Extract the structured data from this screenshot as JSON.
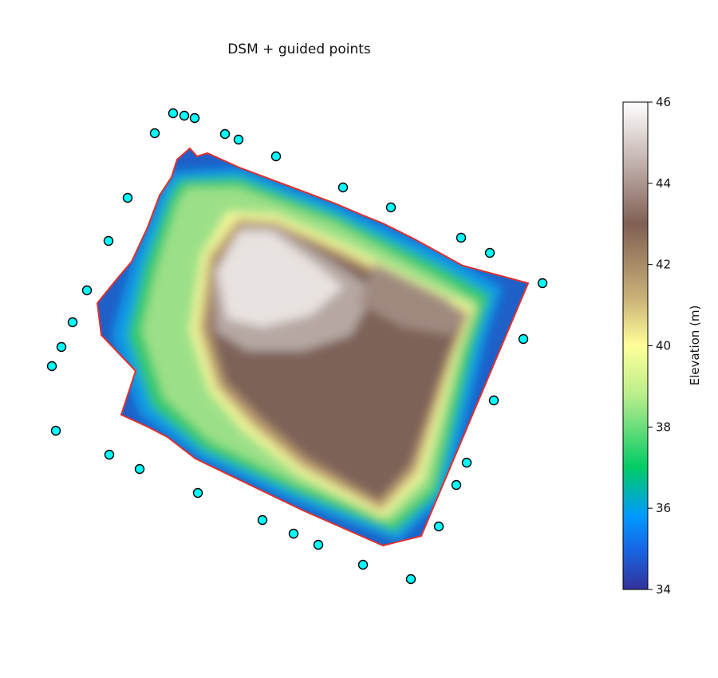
{
  "chart_data": {
    "type": "heatmap",
    "title": "DSM + guided points",
    "colorbar": {
      "label": "Elevation (m)",
      "range": [
        34,
        46
      ],
      "ticks": [
        "34",
        "36",
        "38",
        "40",
        "42",
        "44",
        "46"
      ],
      "colormap": "terrain"
    },
    "boundary_color": "#e03030",
    "point_color": "#00ffff",
    "grid": false,
    "axes_visible": false
  }
}
